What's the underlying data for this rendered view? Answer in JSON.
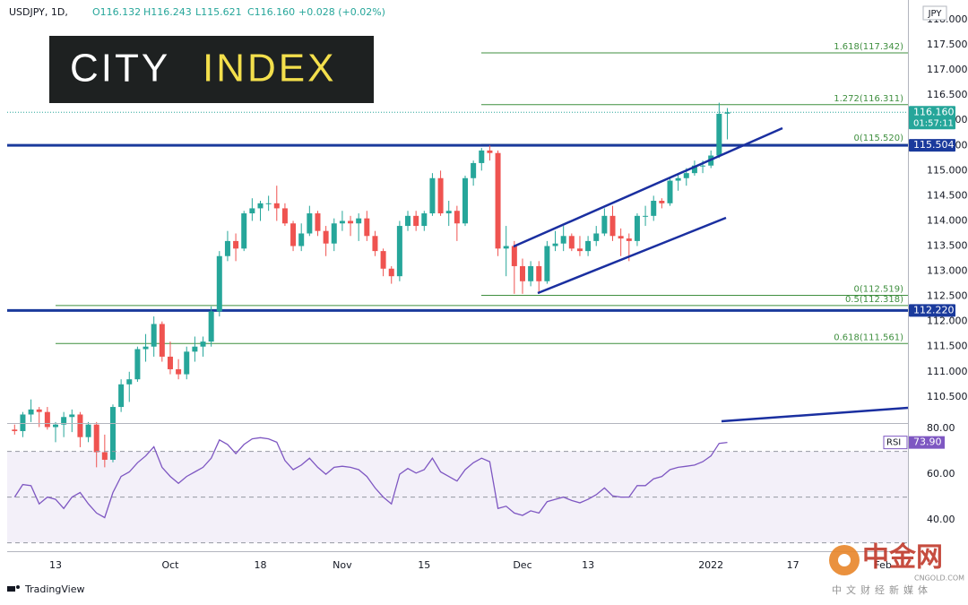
{
  "header": {
    "symbol": "USDJPY, 1D,",
    "open": "O116.132",
    "high": "H116.243",
    "low": "L115.621",
    "close": "C116.160",
    "change": "+0.028 (+0.02%)",
    "currency": "JPY"
  },
  "logo": {
    "left": "CITY",
    "right": "INDEX"
  },
  "footer": {
    "brand": "TradingView",
    "watermark": "中金网",
    "watermark_site": "CNGOLD.COM",
    "watermark_tagline": "中文财经新媒体"
  },
  "chart_data": [
    {
      "type": "candlestick",
      "up_color": "#26a69a",
      "down_color": "#ef5350",
      "categories": [
        null,
        null,
        null,
        null,
        null,
        "13",
        null,
        null,
        null,
        null,
        null,
        null,
        null,
        null,
        null,
        null,
        null,
        null,
        null,
        "Oct",
        null,
        null,
        null,
        null,
        null,
        null,
        null,
        null,
        null,
        null,
        "18",
        null,
        null,
        null,
        null,
        null,
        null,
        null,
        null,
        null,
        "Nov",
        null,
        null,
        null,
        null,
        null,
        null,
        null,
        null,
        null,
        "15",
        null,
        null,
        null,
        null,
        null,
        null,
        null,
        null,
        null,
        null,
        null,
        "Dec",
        null,
        null,
        null,
        null,
        null,
        null,
        null,
        "13",
        null,
        null,
        null,
        null,
        null,
        null,
        null,
        null,
        null,
        null,
        null,
        null,
        null,
        null,
        "2022",
        null,
        null,
        null,
        null,
        null,
        null,
        null,
        null,
        null,
        "17",
        null,
        null,
        null,
        null,
        null,
        null,
        null,
        null,
        null,
        null,
        "Feb"
      ],
      "open": [
        109.85,
        109.82,
        110.15,
        110.25,
        110.2,
        109.9,
        109.95,
        110.1,
        110.15,
        109.7,
        109.95,
        109.4,
        109.25,
        110.3,
        110.75,
        110.85,
        111.45,
        111.5,
        111.95,
        111.3,
        111.05,
        110.95,
        111.4,
        111.5,
        111.6,
        112.2,
        113.3,
        113.6,
        113.45,
        114.15,
        114.25,
        114.35,
        114.35,
        114.25,
        113.95,
        113.5,
        113.75,
        114.15,
        113.8,
        113.55,
        113.95,
        114.0,
        113.95,
        114.05,
        113.7,
        113.4,
        113.05,
        112.9,
        113.9,
        114.1,
        113.9,
        114.15,
        114.85,
        114.15,
        114.2,
        113.95,
        114.85,
        115.15,
        115.4,
        115.35,
        113.45,
        113.5,
        113.1,
        112.8,
        113.1,
        112.8,
        113.5,
        113.55,
        113.7,
        113.45,
        113.4,
        113.6,
        113.75,
        114.1,
        113.7,
        113.65,
        113.6,
        114.1,
        114.1,
        114.4,
        114.35,
        114.8,
        114.85,
        114.95,
        115.1,
        115.1,
        115.3,
        116.132,
        null,
        null,
        null,
        null,
        null,
        null,
        null,
        null,
        null,
        null,
        null,
        null,
        null,
        null,
        null,
        null,
        null,
        null,
        null
      ],
      "high": [
        109.95,
        110.2,
        110.45,
        110.3,
        110.3,
        110.0,
        110.2,
        110.25,
        110.2,
        110.0,
        110.0,
        109.75,
        110.35,
        110.85,
        111.0,
        111.5,
        111.75,
        112.1,
        112.0,
        111.6,
        111.25,
        111.5,
        111.7,
        111.7,
        112.3,
        113.4,
        113.8,
        113.75,
        114.2,
        114.45,
        114.4,
        114.5,
        114.7,
        114.35,
        114.0,
        113.95,
        114.3,
        114.2,
        113.9,
        114.05,
        114.2,
        114.1,
        114.15,
        114.2,
        113.8,
        113.45,
        113.1,
        114.0,
        114.2,
        114.2,
        114.2,
        114.95,
        115.0,
        114.4,
        114.3,
        114.9,
        115.2,
        115.45,
        115.5,
        115.4,
        113.9,
        113.6,
        113.25,
        113.2,
        113.2,
        113.6,
        113.8,
        113.9,
        113.75,
        113.7,
        113.7,
        113.9,
        114.25,
        114.3,
        113.85,
        113.75,
        114.15,
        114.3,
        114.5,
        114.45,
        114.85,
        114.95,
        115.05,
        115.2,
        115.2,
        115.4,
        116.35,
        116.243,
        null,
        null,
        null,
        null,
        null,
        null,
        null,
        null,
        null,
        null,
        null,
        null,
        null,
        null,
        null,
        null,
        null,
        null,
        null
      ],
      "low": [
        109.75,
        109.7,
        110.0,
        109.9,
        109.85,
        109.6,
        109.7,
        109.8,
        109.5,
        109.6,
        109.1,
        109.1,
        109.2,
        110.2,
        110.4,
        110.8,
        111.2,
        111.3,
        111.2,
        110.95,
        110.85,
        110.85,
        111.2,
        111.3,
        111.5,
        112.1,
        113.2,
        113.2,
        113.4,
        114.0,
        114.0,
        114.2,
        114.0,
        113.9,
        113.4,
        113.4,
        113.7,
        113.7,
        113.3,
        113.4,
        113.8,
        113.7,
        113.6,
        113.6,
        113.3,
        112.9,
        112.75,
        112.8,
        113.8,
        113.8,
        113.8,
        114.1,
        114.1,
        113.9,
        113.6,
        113.9,
        114.7,
        115.0,
        115.2,
        113.3,
        112.9,
        112.55,
        112.55,
        112.7,
        112.55,
        112.75,
        113.4,
        113.4,
        113.4,
        113.3,
        113.3,
        113.5,
        113.7,
        113.6,
        113.3,
        113.2,
        113.5,
        113.9,
        114.0,
        114.25,
        114.3,
        114.6,
        114.7,
        114.9,
        114.95,
        115.05,
        115.25,
        115.621,
        null,
        null,
        null,
        null,
        null,
        null,
        null,
        null,
        null,
        null,
        null,
        null,
        null,
        null,
        null,
        null,
        null,
        null,
        null
      ],
      "close": [
        109.82,
        110.15,
        110.25,
        110.2,
        109.9,
        109.95,
        110.1,
        110.15,
        109.7,
        109.95,
        109.4,
        109.25,
        110.3,
        110.75,
        110.85,
        111.45,
        111.5,
        111.95,
        111.3,
        111.05,
        110.95,
        111.4,
        111.5,
        111.6,
        112.2,
        113.3,
        113.6,
        113.45,
        114.15,
        114.25,
        114.35,
        114.35,
        114.25,
        113.95,
        113.5,
        113.75,
        114.15,
        113.8,
        113.55,
        113.95,
        114.0,
        113.95,
        114.05,
        113.7,
        113.4,
        113.05,
        112.9,
        113.9,
        114.1,
        113.9,
        114.15,
        114.85,
        114.15,
        114.2,
        113.95,
        114.85,
        115.15,
        115.4,
        115.35,
        113.45,
        113.5,
        113.1,
        112.8,
        113.1,
        112.8,
        113.5,
        113.55,
        113.7,
        113.45,
        113.4,
        113.6,
        113.75,
        114.1,
        113.7,
        113.65,
        113.6,
        114.1,
        114.1,
        114.4,
        114.35,
        114.8,
        114.85,
        114.95,
        115.1,
        115.1,
        115.3,
        116.13,
        116.16,
        null,
        null,
        null,
        null,
        null,
        null,
        null,
        null,
        null,
        null,
        null,
        null,
        null,
        null,
        null,
        null,
        null,
        null,
        null
      ],
      "ylim": [
        109.98,
        118.25
      ],
      "yticks": [
        {
          "value": 110.5,
          "label": "110.500"
        },
        {
          "value": 111,
          "label": "111.000"
        },
        {
          "value": 111.5,
          "label": "111.500"
        },
        {
          "value": 112,
          "label": "112.000"
        },
        {
          "value": 112.5,
          "label": "112.500"
        },
        {
          "value": 113,
          "label": "113.000"
        },
        {
          "value": 113.5,
          "label": "113.500"
        },
        {
          "value": 114,
          "label": "114.000"
        },
        {
          "value": 114.5,
          "label": "114.500"
        },
        {
          "value": 115,
          "label": "115.000"
        },
        {
          "value": 115.5,
          "label": "115.500"
        },
        {
          "value": 116,
          "label": "116.000"
        },
        {
          "value": 116.5,
          "label": "116.500"
        },
        {
          "value": 117,
          "label": "117.000"
        },
        {
          "value": 117.5,
          "label": "117.500"
        },
        {
          "value": 118,
          "label": "118.000"
        }
      ],
      "fib_color": "#3f8f3f",
      "levels": [
        {
          "value": 117.342,
          "label": "1.618(117.342)"
        },
        {
          "value": 116.311,
          "label": "1.272(116.311)"
        },
        {
          "value": 115.52,
          "label": "0(115.520)"
        },
        {
          "value": 112.519,
          "label": "0(112.519)"
        },
        {
          "value": 112.318,
          "label": "0.5(112.318)"
        },
        {
          "value": 111.561,
          "label": "0.618(111.561)"
        }
      ],
      "price_lines": [
        {
          "value": 116.16,
          "label": "116.160",
          "sublabel": "01:57:11",
          "color": "#26a69a",
          "style": "dotted"
        },
        {
          "value": 115.504,
          "label": "115.504",
          "color": "#1a3a9c",
          "style": "solid"
        },
        {
          "value": 112.22,
          "label": "112.220",
          "color": "#1a3a9c",
          "style": "solid"
        }
      ]
    },
    {
      "type": "line",
      "name": "RSI",
      "color": "#7e57c2",
      "last_value_label": "73.90",
      "values": [
        50,
        55.5,
        55,
        47,
        50,
        49,
        45,
        50,
        52,
        47,
        43,
        41,
        52,
        59,
        61,
        65,
        68,
        72,
        63,
        59,
        56,
        59,
        61,
        63,
        67,
        75,
        73,
        69,
        73,
        75.5,
        76,
        75.5,
        74,
        66,
        62,
        64,
        67,
        63,
        60,
        63,
        63.5,
        63,
        62,
        59,
        54,
        50,
        47,
        60,
        62.5,
        60.5,
        62,
        67,
        61,
        59,
        57,
        62,
        65,
        67,
        65.5,
        45,
        46,
        43,
        42,
        44,
        43,
        48,
        49,
        50,
        48.5,
        47.5,
        49,
        51,
        54,
        50.5,
        50,
        50,
        55,
        55,
        58,
        59,
        62,
        63,
        63.5,
        64,
        65.5,
        68,
        73.5,
        73.9,
        null,
        null,
        null,
        null,
        null,
        null,
        null,
        null,
        null,
        null,
        null,
        null,
        null,
        null,
        null,
        null,
        null,
        null,
        null
      ],
      "ylim": [
        26.3,
        82
      ],
      "yticks": [
        {
          "value": 40,
          "label": "40.00"
        },
        {
          "value": 60,
          "label": "60.00"
        },
        {
          "value": 80,
          "label": "80.00"
        }
      ],
      "levels": [
        30,
        50,
        70
      ]
    }
  ]
}
